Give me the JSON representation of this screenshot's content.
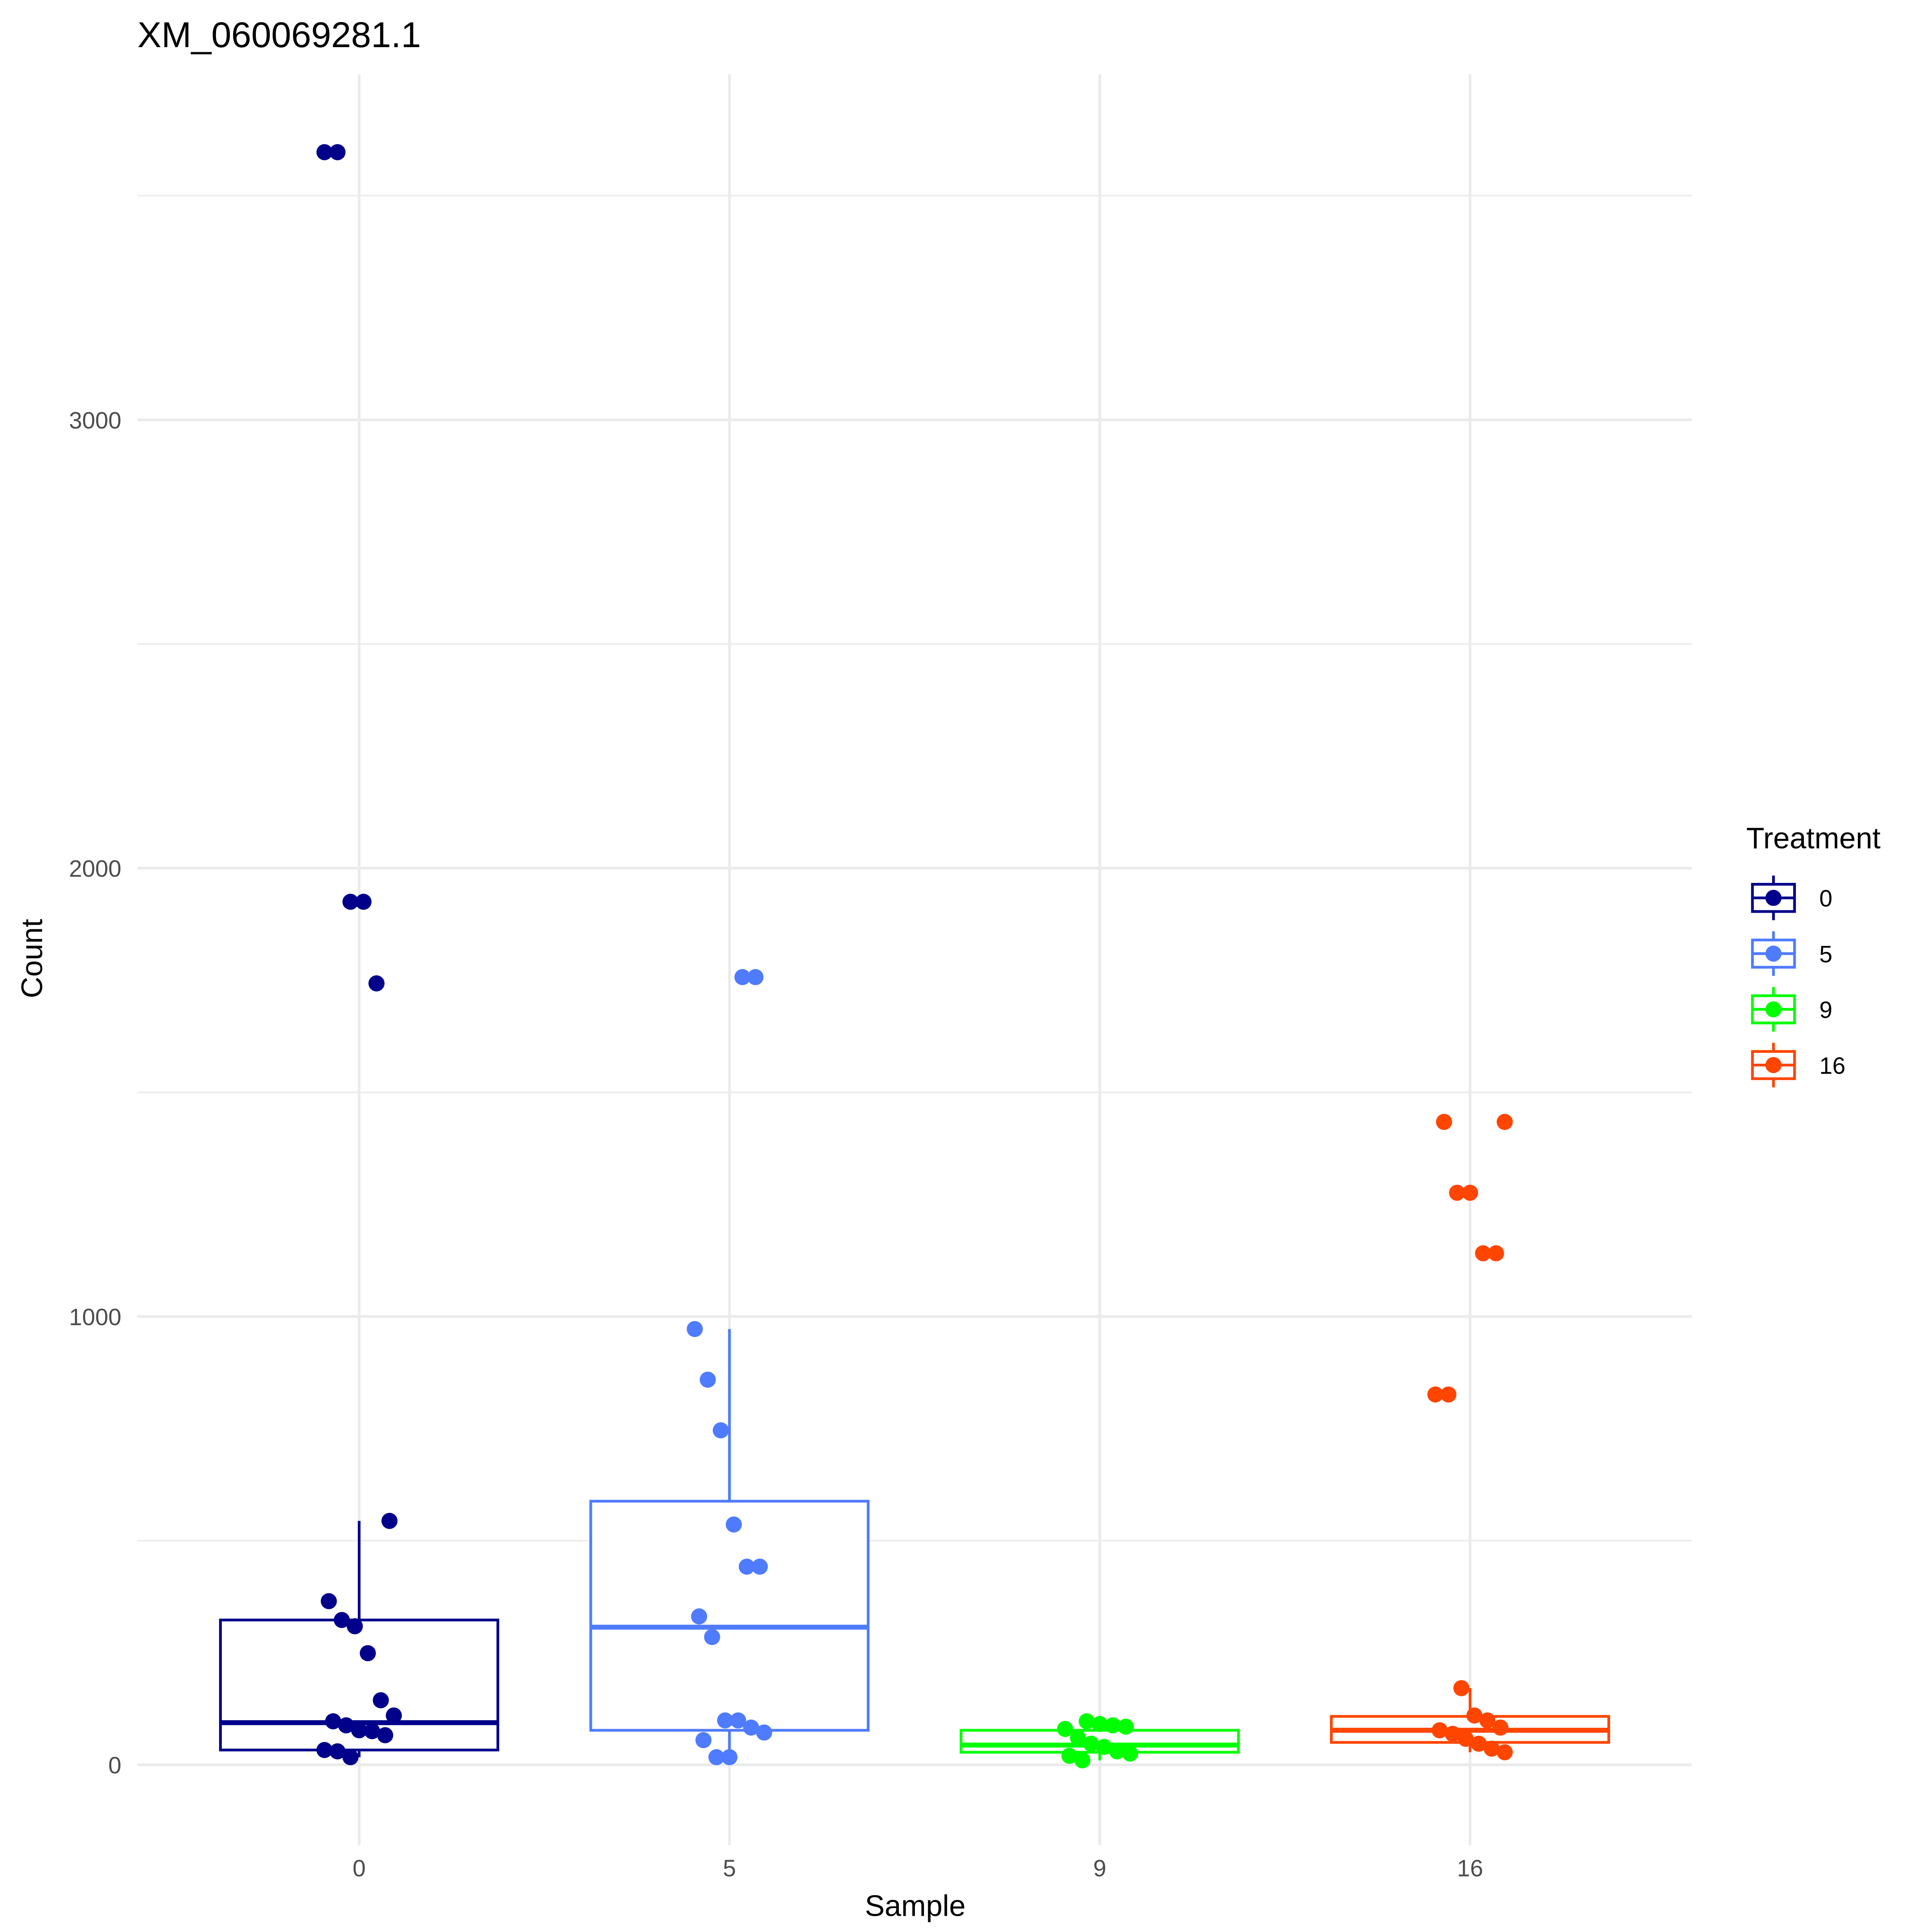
{
  "chart_data": {
    "type": "boxplot",
    "title": "XM_060069281.1",
    "xlabel": "Sample",
    "ylabel": "Count",
    "categories": [
      "0",
      "5",
      "9",
      "16"
    ],
    "ylim": [
      -200,
      3750
    ],
    "yticks": [
      0,
      1000,
      2000,
      3000
    ],
    "grid": true,
    "legend": {
      "title": "Treatment",
      "position": "right",
      "entries": [
        "0",
        "5",
        "9",
        "16"
      ]
    },
    "colors": {
      "0": "#00008B",
      "5": "#4F7BFF",
      "9": "#00FF00",
      "16": "#FF4500"
    },
    "boxes": [
      {
        "category": "0",
        "lower_whisker": 17,
        "q1": 33,
        "median": 94,
        "q3": 323,
        "upper_whisker": 544
      },
      {
        "category": "5",
        "lower_whisker": 17,
        "q1": 77,
        "median": 307,
        "q3": 588,
        "upper_whisker": 972
      },
      {
        "category": "9",
        "lower_whisker": 10,
        "q1": 28,
        "median": 44,
        "q3": 77,
        "upper_whisker": 97
      },
      {
        "category": "16",
        "lower_whisker": 28,
        "q1": 50,
        "median": 77,
        "q3": 108,
        "upper_whisker": 171
      }
    ],
    "points": {
      "0": [
        3597,
        3597,
        1925,
        1925,
        1743,
        544,
        365,
        323,
        309,
        249,
        144,
        110,
        97,
        88,
        77,
        75,
        66,
        33,
        30,
        17
      ],
      "5": [
        1757,
        1757,
        972,
        859,
        746,
        536,
        442,
        442,
        331,
        285,
        99,
        99,
        83,
        72,
        55,
        17,
        17
      ],
      "9": [
        97,
        91,
        88,
        85,
        80,
        60,
        47,
        40,
        30,
        25,
        20,
        10
      ],
      "16": [
        1434,
        1434,
        1276,
        1276,
        1141,
        1141,
        826,
        826,
        171,
        110,
        99,
        83,
        77,
        69,
        58,
        47,
        36,
        28
      ]
    }
  }
}
